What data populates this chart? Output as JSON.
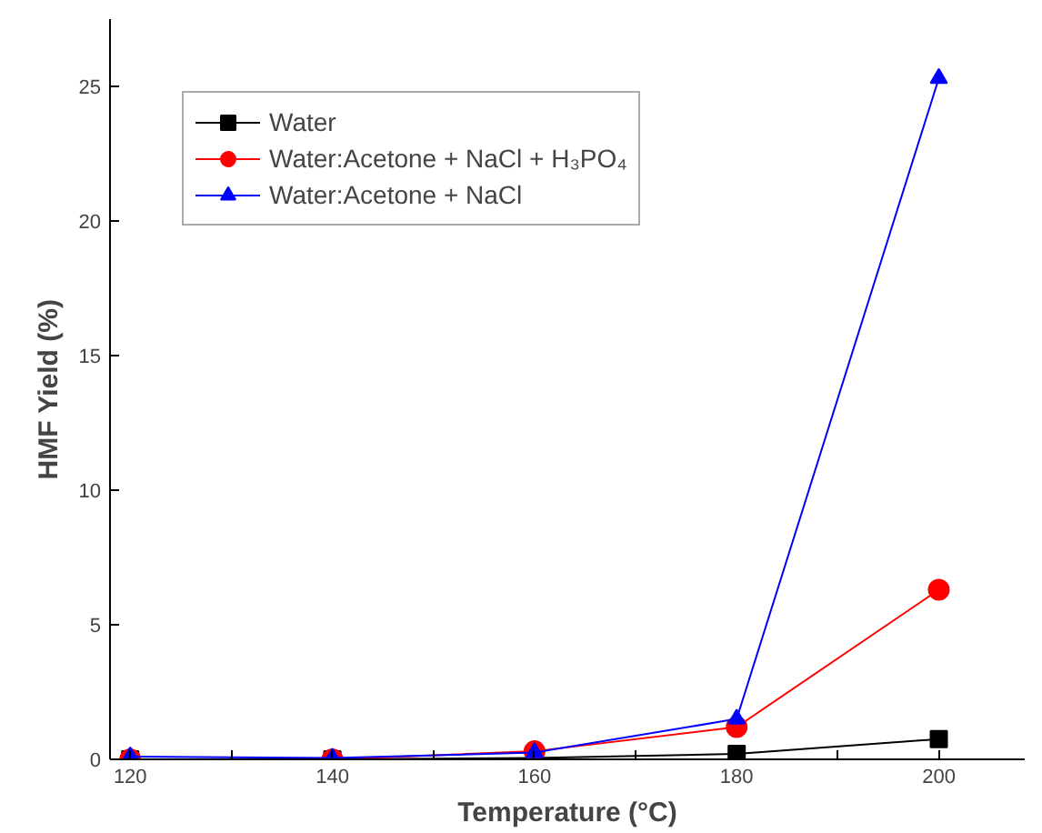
{
  "chart_data": {
    "type": "line",
    "xlabel": "Temperature (°C)",
    "ylabel": "HMF Yield (%)",
    "x": [
      120,
      140,
      160,
      180,
      200
    ],
    "xlim": [
      118,
      208.5
    ],
    "ylim": [
      0,
      27.5
    ],
    "xticks": [
      120,
      {
        "value": 130,
        "label": null
      },
      140,
      {
        "value": 150,
        "label": null
      },
      160,
      {
        "value": 170,
        "label": null
      },
      180,
      {
        "value": 190,
        "label": null
      },
      200
    ],
    "yticks": [
      0,
      5,
      10,
      15,
      20,
      25
    ],
    "grid": false,
    "legend": "top left",
    "series": [
      {
        "name": "Water",
        "color": "#000000",
        "marker": "square",
        "values": [
          0.0,
          0.0,
          0.05,
          0.2,
          0.75
        ]
      },
      {
        "name": "Water:Acetone + NaCl + H₃PO₄",
        "color": "#ff0000",
        "marker": "circle",
        "values": [
          0.0,
          0.0,
          0.3,
          1.2,
          6.3
        ]
      },
      {
        "name": "Water:Acetone + NaCl",
        "color": "#0000ff",
        "marker": "triangle",
        "values": [
          0.1,
          0.05,
          0.25,
          1.5,
          25.3
        ]
      }
    ]
  }
}
